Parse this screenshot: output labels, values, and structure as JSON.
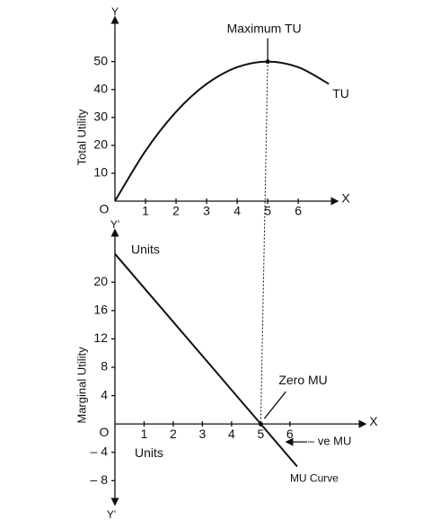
{
  "chart_data": [
    {
      "type": "line",
      "ylabel": "Total Utility",
      "origin_label": "O",
      "x_axis_letter": "X",
      "y_axis_letter": "Y",
      "x": [
        0,
        1,
        2,
        3,
        4,
        5,
        6,
        7
      ],
      "series": [
        {
          "name": "TU",
          "color": "#111111",
          "values": [
            0,
            18,
            32,
            42,
            48,
            50,
            48,
            42
          ]
        }
      ],
      "xlim": [
        0,
        7.2
      ],
      "ylim": [
        0,
        65
      ],
      "xticks": [
        1,
        2,
        3,
        4,
        5,
        6
      ],
      "yticks": [
        10,
        20,
        30,
        40,
        50
      ],
      "annotation": "Maximum TU"
    },
    {
      "type": "line",
      "ylabel": "Marginal Utility",
      "origin_label": "O",
      "x_axis_letter": "X",
      "y_axis_letter": "Y'",
      "y_axis_bottom_letter": "Y'",
      "units_label_top": "Units",
      "units_label_bottom": "Units",
      "x": [
        0,
        5,
        6.25
      ],
      "series": [
        {
          "name": "MU Curve",
          "color": "#111111",
          "values": [
            24,
            0,
            -6
          ]
        }
      ],
      "xlim": [
        0,
        8.5
      ],
      "ylim": [
        -11,
        27
      ],
      "xticks": [
        1,
        2,
        3,
        4,
        5,
        6
      ],
      "yticks": [
        20,
        16,
        12,
        8,
        4,
        {
          "value": -4,
          "label": "– 4"
        },
        {
          "value": -8,
          "label": "– 8"
        }
      ],
      "annotations": [
        "Zero MU",
        "– ve MU"
      ]
    }
  ]
}
